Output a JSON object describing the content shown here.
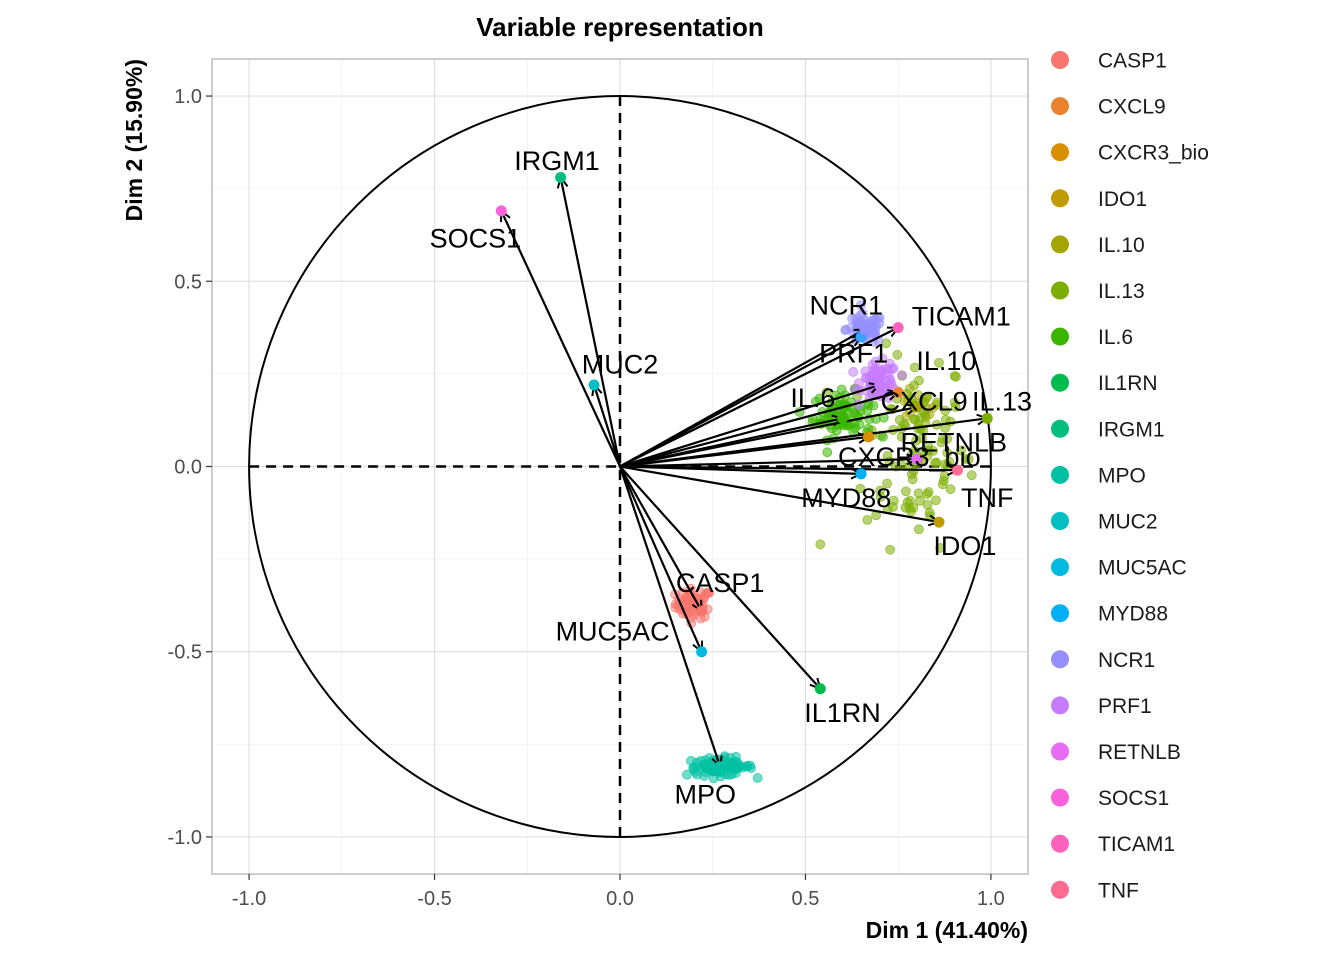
{
  "chart_data": {
    "type": "scatter",
    "title": "Variable representation",
    "xlabel": "Dim 1 (41.40%)",
    "ylabel": "Dim 2 (15.90%)",
    "xlim": [
      -1.1,
      1.1
    ],
    "ylim": [
      -1.1,
      1.1
    ],
    "x_ticks": [
      -1.0,
      -0.5,
      0.0,
      0.5,
      1.0
    ],
    "y_ticks": [
      -1.0,
      -0.5,
      0.0,
      0.5,
      1.0
    ],
    "x_tick_labels": [
      "-1.0",
      "-0.5",
      "0.0",
      "0.5",
      "1.0"
    ],
    "y_tick_labels": [
      "-1.0",
      "-0.5",
      "0.0",
      "0.5",
      "1.0"
    ],
    "grid": true,
    "legend_position": "right",
    "unit_circle": true,
    "variables": [
      {
        "name": "CASP1",
        "color": "#F8766D",
        "x": 0.22,
        "y": -0.39,
        "cloud": {
          "cx": 0.2,
          "cy": -0.37,
          "sx": 0.025,
          "sy": 0.02,
          "n": 60
        }
      },
      {
        "name": "CXCL9",
        "color": "#EA8331",
        "x": 0.75,
        "y": 0.2
      },
      {
        "name": "CXCR3_bio",
        "color": "#D89000",
        "x": 0.67,
        "y": 0.08,
        "label": "CXCR3_bio"
      },
      {
        "name": "IDO1",
        "color": "#C09B00",
        "x": 0.86,
        "y": -0.15
      },
      {
        "name": "IL.10",
        "color": "#A3A500",
        "x": 0.8,
        "y": 0.16,
        "cloud": {
          "cx": 0.8,
          "cy": 0.16,
          "sx": 0.03,
          "sy": 0.02,
          "n": 15
        }
      },
      {
        "name": "IL.13",
        "color": "#7CAE00",
        "x": 0.99,
        "y": 0.13,
        "cloud": {
          "cx": 0.8,
          "cy": 0.05,
          "sx": 0.07,
          "sy": 0.13,
          "n": 110
        }
      },
      {
        "name": "IL.6",
        "color": "#39B600",
        "x": 0.6,
        "y": 0.13,
        "cloud": {
          "cx": 0.6,
          "cy": 0.14,
          "sx": 0.04,
          "sy": 0.03,
          "n": 80
        }
      },
      {
        "name": "IL1RN",
        "color": "#00BB4E",
        "x": 0.54,
        "y": -0.6
      },
      {
        "name": "IRGM1",
        "color": "#00BF7D",
        "x": -0.16,
        "y": 0.78
      },
      {
        "name": "MPO",
        "color": "#00C1A3",
        "x": 0.27,
        "y": -0.81,
        "cloud": {
          "cx": 0.27,
          "cy": -0.81,
          "sx": 0.045,
          "sy": 0.012,
          "n": 90
        }
      },
      {
        "name": "MUC2",
        "color": "#00BFC4",
        "x": -0.07,
        "y": 0.22
      },
      {
        "name": "MUC5AC",
        "color": "#00BAE0",
        "x": 0.22,
        "y": -0.5
      },
      {
        "name": "MYD88",
        "color": "#00B0F6",
        "x": 0.65,
        "y": -0.02
      },
      {
        "name": "NCR1",
        "color": "#35A2FF",
        "x": 0.65,
        "y": 0.35
      },
      {
        "name": "NCR1",
        "color": "#9590FF",
        "x": 0.66,
        "y": 0.37,
        "cloud": {
          "cx": 0.66,
          "cy": 0.37,
          "sx": 0.025,
          "sy": 0.02,
          "n": 60
        }
      },
      {
        "name": "PRF1",
        "color": "#C77CFF",
        "x": 0.7,
        "y": 0.22,
        "cloud": {
          "cx": 0.7,
          "cy": 0.23,
          "sx": 0.025,
          "sy": 0.025,
          "n": 70
        }
      },
      {
        "name": "RETNLB",
        "color": "#E76BF3",
        "x": 0.8,
        "y": 0.02
      },
      {
        "name": "SOCS1",
        "color": "#FA62DB",
        "x": -0.32,
        "y": 0.69
      },
      {
        "name": "TICAM1",
        "color": "#FF62BC",
        "x": 0.75,
        "y": 0.375
      },
      {
        "name": "TNF",
        "color": "#FF6C91",
        "x": 0.91,
        "y": -0.01
      }
    ],
    "labels": [
      {
        "text": "IRGM1",
        "x": -0.17,
        "y": 0.82
      },
      {
        "text": "SOCS1",
        "x": -0.39,
        "y": 0.61
      },
      {
        "text": "MUC2",
        "x": 0.0,
        "y": 0.27
      },
      {
        "text": "NCR1",
        "x": 0.61,
        "y": 0.43
      },
      {
        "text": "TICAM1",
        "x": 0.92,
        "y": 0.4
      },
      {
        "text": "PRF1",
        "x": 0.63,
        "y": 0.3
      },
      {
        "text": "IL.10",
        "x": 0.88,
        "y": 0.28
      },
      {
        "text": "IL.6",
        "x": 0.52,
        "y": 0.18
      },
      {
        "text": "CXCL9",
        "x": 0.82,
        "y": 0.17
      },
      {
        "text": "IL.13",
        "x": 1.03,
        "y": 0.17
      },
      {
        "text": "RETNLB",
        "x": 0.9,
        "y": 0.06
      },
      {
        "text": "CXCR3_bio",
        "x": 0.78,
        "y": 0.02
      },
      {
        "text": "MYD88",
        "x": 0.61,
        "y": -0.09
      },
      {
        "text": "TNF",
        "x": 0.99,
        "y": -0.09
      },
      {
        "text": "IDO1",
        "x": 0.93,
        "y": -0.22
      },
      {
        "text": "CASP1",
        "x": 0.27,
        "y": -0.32
      },
      {
        "text": "MUC5AC",
        "x": -0.02,
        "y": -0.45
      },
      {
        "text": "IL1RN",
        "x": 0.6,
        "y": -0.67
      },
      {
        "text": "MPO",
        "x": 0.23,
        "y": -0.89
      }
    ],
    "legend": [
      {
        "label": "CASP1",
        "color": "#F8766D"
      },
      {
        "label": "CXCL9",
        "color": "#EA8331"
      },
      {
        "label": "CXCR3_bio",
        "color": "#D89000"
      },
      {
        "label": "IDO1",
        "color": "#C09B00"
      },
      {
        "label": "IL.10",
        "color": "#A3A500"
      },
      {
        "label": "IL.13",
        "color": "#7CAE00"
      },
      {
        "label": "IL.6",
        "color": "#39B600"
      },
      {
        "label": "IL1RN",
        "color": "#00BB4E"
      },
      {
        "label": "IRGM1",
        "color": "#00BF7D"
      },
      {
        "label": "MPO",
        "color": "#00C1A3"
      },
      {
        "label": "MUC2",
        "color": "#00BFC4"
      },
      {
        "label": "MUC5AC",
        "color": "#00BAE0"
      },
      {
        "label": "MYD88",
        "color": "#00B0F6"
      },
      {
        "label": "NCR1",
        "color": "#9590FF"
      },
      {
        "label": "PRF1",
        "color": "#C77CFF"
      },
      {
        "label": "RETNLB",
        "color": "#E76BF3"
      },
      {
        "label": "SOCS1",
        "color": "#FA62DB"
      },
      {
        "label": "TICAM1",
        "color": "#FF62BC"
      },
      {
        "label": "TNF",
        "color": "#FF6C91"
      }
    ]
  }
}
